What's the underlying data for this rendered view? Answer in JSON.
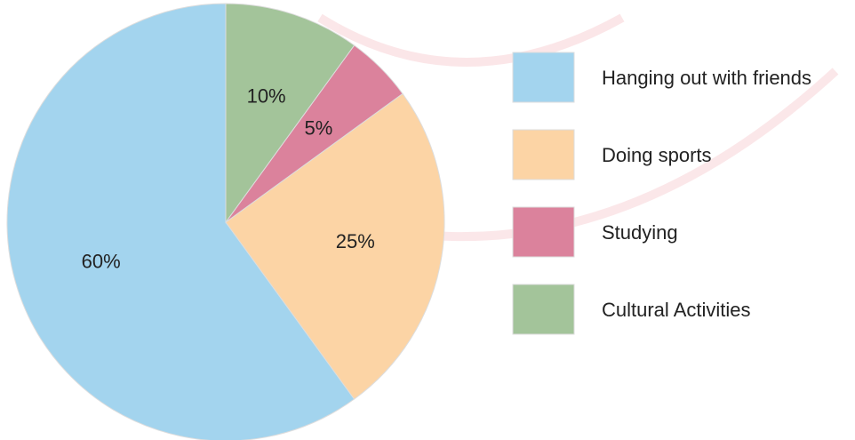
{
  "chart_data": {
    "type": "pie",
    "categories": [
      "Hanging out with friends",
      "Doing sports",
      "Studying",
      "Cultural Activities"
    ],
    "values": [
      60,
      25,
      5,
      10
    ],
    "value_labels": [
      "60%",
      "25%",
      "5%",
      "10%"
    ],
    "colors": [
      "#a3d4ee",
      "#fcd4a5",
      "#db829c",
      "#a3c49a"
    ],
    "legend": "right"
  }
}
